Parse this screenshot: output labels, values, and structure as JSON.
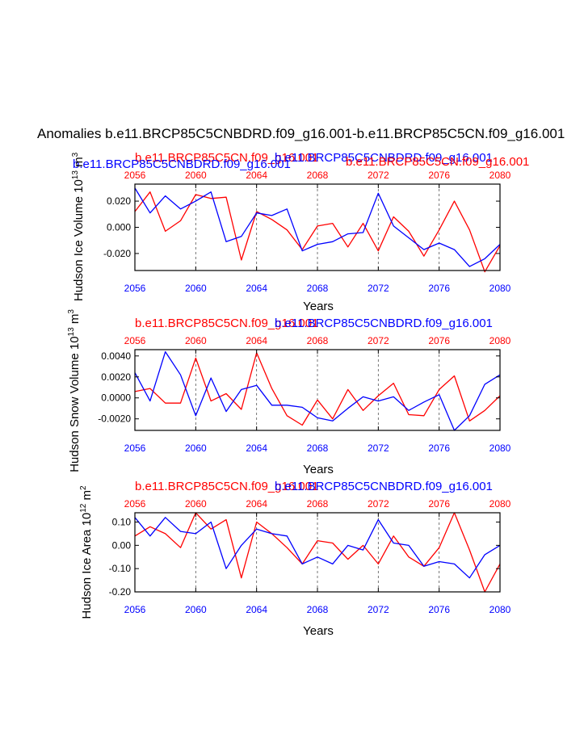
{
  "main_title": "Anomalies b.e11.BRCP85C5CNBDRD.f09_g16.001-b.e11.BRCP85C5CN.f09_g16.001",
  "colors": {
    "red": "#ff0000",
    "blue": "#0000ff",
    "axis": "#000000",
    "grid": "#555555"
  },
  "chart_data": [
    {
      "type": "line",
      "ylabel": "Hudson Ice Volume 10",
      "ylabel_exp": "13",
      "ylabel_unit": "m",
      "ylabel_unit_exp": "3",
      "xlabel": "Years",
      "ylim": [
        -0.033,
        0.033
      ],
      "yticks": [
        0.02,
        0.0,
        -0.02
      ],
      "ytick_labels": [
        "0.020",
        "0.000",
        "-0.020"
      ],
      "xticks": [
        "2056",
        "2060",
        "2064",
        "2068",
        "2072",
        "2076",
        "2080"
      ],
      "grid": "vertical-dashed",
      "top_labels": [
        {
          "text": "b.e11.BRCP85C5CN.f09_g16.001",
          "color": "red",
          "pos": "left"
        },
        {
          "text": "b.e11.BRCP85C5CNBDRD.f09_g16.001",
          "color": "blue",
          "pos": "center"
        },
        {
          "text": "b.e11.BRCP85C5CNBDRD.f09_g16.001",
          "color": "blue",
          "pos": "left-low"
        },
        {
          "text": "b.e11.BRCP85C5CN.f09_g16.001",
          "color": "red",
          "pos": "right"
        }
      ],
      "x": [
        2056,
        2057,
        2058,
        2059,
        2060,
        2061,
        2062,
        2063,
        2064,
        2065,
        2066,
        2067,
        2068,
        2069,
        2070,
        2071,
        2072,
        2073,
        2074,
        2075,
        2076,
        2077,
        2078,
        2079,
        2080
      ],
      "series": [
        {
          "color": "red",
          "values": [
            0.012,
            0.027,
            -0.003,
            0.005,
            0.025,
            0.022,
            0.023,
            -0.025,
            0.012,
            0.006,
            -0.002,
            -0.017,
            0.001,
            0.003,
            -0.015,
            0.003,
            -0.018,
            0.008,
            -0.003,
            -0.022,
            -0.002,
            0.02,
            -0.002,
            -0.034,
            -0.014
          ]
        },
        {
          "color": "blue",
          "values": [
            0.03,
            0.011,
            0.024,
            0.014,
            0.02,
            0.027,
            -0.011,
            -0.007,
            0.011,
            0.009,
            0.014,
            -0.018,
            -0.013,
            -0.011,
            -0.005,
            -0.004,
            0.026,
            0.001,
            -0.008,
            -0.017,
            -0.012,
            -0.017,
            -0.03,
            -0.024,
            -0.013
          ]
        }
      ]
    },
    {
      "type": "line",
      "ylabel": "Hudson Snow Volume 10",
      "ylabel_exp": "13",
      "ylabel_unit": "m",
      "ylabel_unit_exp": "3",
      "xlabel": "Years",
      "ylim": [
        -0.0031,
        0.0046
      ],
      "yticks": [
        0.004,
        0.002,
        0.0,
        -0.002
      ],
      "ytick_labels": [
        "0.0040",
        "0.0020",
        "0.0000",
        "-0.0020"
      ],
      "xticks": [
        "2056",
        "2060",
        "2064",
        "2068",
        "2072",
        "2076",
        "2080"
      ],
      "grid": "vertical-dashed",
      "top_labels": [
        {
          "text": "b.e11.BRCP85C5CN.f09_g16.001",
          "color": "red",
          "pos": "left"
        },
        {
          "text": "b.e11.BRCP85C5CNBDRD.f09_g16.001",
          "color": "blue",
          "pos": "center"
        }
      ],
      "x": [
        2056,
        2057,
        2058,
        2059,
        2060,
        2061,
        2062,
        2063,
        2064,
        2065,
        2066,
        2067,
        2068,
        2069,
        2070,
        2071,
        2072,
        2073,
        2074,
        2075,
        2076,
        2077,
        2078,
        2079,
        2080
      ],
      "series": [
        {
          "color": "red",
          "values": [
            0.0006,
            0.0009,
            -0.0005,
            -0.0005,
            0.0038,
            -0.0003,
            0.0004,
            -0.0011,
            0.0043,
            0.0009,
            -0.0017,
            -0.0026,
            -0.0002,
            -0.002,
            0.0008,
            -0.0012,
            0.0002,
            0.0014,
            -0.0016,
            -0.0017,
            0.0008,
            0.0021,
            -0.0022,
            -0.0012,
            0.0002
          ]
        },
        {
          "color": "blue",
          "values": [
            0.0024,
            -0.0003,
            0.0044,
            0.0022,
            -0.0017,
            0.0019,
            -0.0013,
            0.0008,
            0.0012,
            -0.0007,
            -0.0007,
            -0.0009,
            -0.0019,
            -0.0022,
            -0.001,
            0.0001,
            -0.0003,
            0.0001,
            -0.0012,
            -0.0004,
            0.0003,
            -0.0031,
            -0.0017,
            0.0013,
            0.0022
          ]
        }
      ]
    },
    {
      "type": "line",
      "ylabel": "Hudson Ice Area 10",
      "ylabel_exp": "12",
      "ylabel_unit": "m",
      "ylabel_unit_exp": "2",
      "xlabel": "Years",
      "ylim": [
        -0.2,
        0.14
      ],
      "yticks": [
        0.1,
        0.0,
        -0.1,
        -0.2
      ],
      "ytick_labels": [
        "0.10",
        "0.00",
        "-0.10",
        "-0.20"
      ],
      "xticks": [
        "2056",
        "2060",
        "2064",
        "2068",
        "2072",
        "2076",
        "2080"
      ],
      "grid": "vertical-dashed",
      "top_labels": [
        {
          "text": "b.e11.BRCP85C5CN.f09_g16.001",
          "color": "red",
          "pos": "left"
        },
        {
          "text": "b.e11.BRCP85C5CNBDRD.f09_g16.001",
          "color": "blue",
          "pos": "center"
        }
      ],
      "x": [
        2056,
        2057,
        2058,
        2059,
        2060,
        2061,
        2062,
        2063,
        2064,
        2065,
        2066,
        2067,
        2068,
        2069,
        2070,
        2071,
        2072,
        2073,
        2074,
        2075,
        2076,
        2077,
        2078,
        2079,
        2080
      ],
      "series": [
        {
          "color": "red",
          "values": [
            0.04,
            0.08,
            0.05,
            -0.01,
            0.14,
            0.07,
            0.11,
            -0.14,
            0.1,
            0.05,
            -0.01,
            -0.08,
            0.02,
            0.01,
            -0.06,
            0.0,
            -0.08,
            0.04,
            -0.05,
            -0.09,
            -0.01,
            0.14,
            -0.02,
            -0.2,
            -0.08
          ]
        },
        {
          "color": "blue",
          "values": [
            0.12,
            0.04,
            0.12,
            0.06,
            0.05,
            0.1,
            -0.1,
            0.0,
            0.07,
            0.05,
            0.04,
            -0.08,
            -0.05,
            -0.08,
            0.0,
            -0.02,
            0.11,
            0.01,
            0.0,
            -0.09,
            -0.07,
            -0.08,
            -0.14,
            -0.04,
            0.0
          ]
        }
      ]
    }
  ]
}
